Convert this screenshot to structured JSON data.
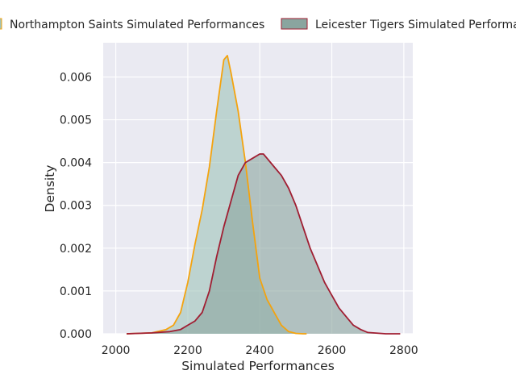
{
  "chart_data": {
    "type": "area",
    "title": "",
    "xlabel": "Simulated Performances",
    "ylabel": "Density",
    "xlim": [
      1965,
      2825
    ],
    "ylim": [
      0,
      0.0068
    ],
    "x_ticks": [
      2000,
      2200,
      2400,
      2600,
      2800
    ],
    "x_tick_labels": [
      "2000",
      "2200",
      "2400",
      "2600",
      "2800"
    ],
    "y_ticks": [
      0,
      0.001,
      0.002,
      0.003,
      0.004,
      0.005,
      0.006
    ],
    "y_tick_labels": [
      "0.000",
      "0.001",
      "0.002",
      "0.003",
      "0.004",
      "0.005",
      "0.006"
    ],
    "grid": true,
    "legend_position": "top, above plot",
    "series": [
      {
        "name": "Northampton Saints Simulated Performances",
        "line_color": "#f4a30e",
        "fill_color": "#9fc3b9",
        "x": [
          2030,
          2100,
          2140,
          2160,
          2180,
          2200,
          2220,
          2240,
          2260,
          2280,
          2300,
          2310,
          2320,
          2340,
          2360,
          2380,
          2400,
          2420,
          2440,
          2460,
          2480,
          2500,
          2520,
          2530
        ],
        "values": [
          0,
          2e-05,
          0.0001,
          0.0002,
          0.0005,
          0.0012,
          0.0021,
          0.0029,
          0.0039,
          0.0052,
          0.0064,
          0.0065,
          0.0061,
          0.0052,
          0.004,
          0.0026,
          0.0013,
          0.0008,
          0.0005,
          0.0002,
          5e-05,
          1e-05,
          0,
          0
        ]
      },
      {
        "name": "Leicester Tigers Simulated Performances",
        "line_color": "#a01e32",
        "fill_color": "#8aa59f",
        "x": [
          2030,
          2100,
          2150,
          2180,
          2200,
          2220,
          2240,
          2260,
          2280,
          2300,
          2320,
          2340,
          2360,
          2380,
          2400,
          2410,
          2420,
          2440,
          2460,
          2480,
          2500,
          2520,
          2540,
          2560,
          2580,
          2600,
          2620,
          2640,
          2660,
          2680,
          2700,
          2750,
          2790
        ],
        "values": [
          0,
          2e-05,
          5e-05,
          0.0001,
          0.0002,
          0.0003,
          0.0005,
          0.001,
          0.0018,
          0.0025,
          0.0031,
          0.0037,
          0.004,
          0.0041,
          0.0042,
          0.0042,
          0.0041,
          0.0039,
          0.0037,
          0.0034,
          0.003,
          0.0025,
          0.002,
          0.0016,
          0.0012,
          0.0009,
          0.0006,
          0.0004,
          0.0002,
          0.0001,
          3e-05,
          0,
          0
        ]
      }
    ]
  }
}
